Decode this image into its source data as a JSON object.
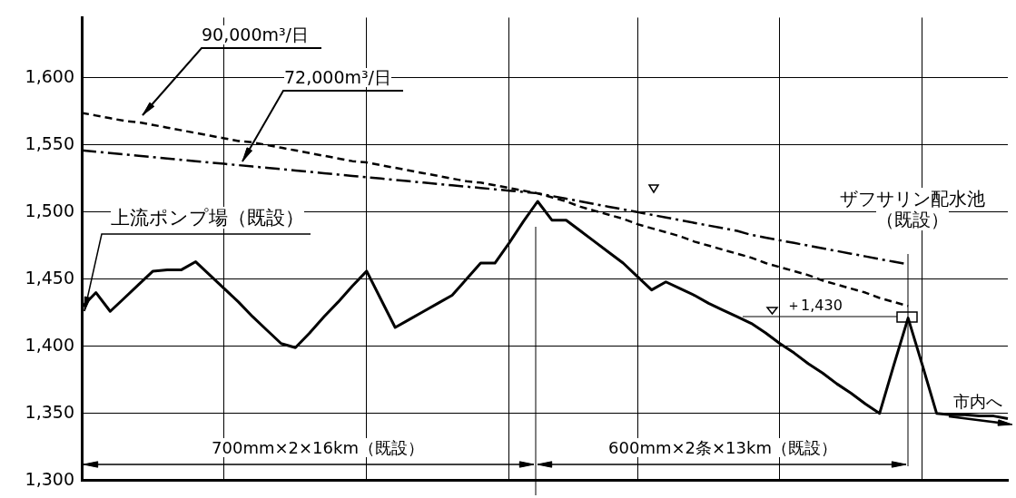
{
  "chart_data": {
    "type": "line",
    "categories": [
      null,
      null,
      null,
      null,
      null,
      null,
      null,
      null,
      null,
      null,
      null,
      null,
      null,
      null,
      null,
      null,
      null,
      null,
      null,
      null,
      null,
      null,
      null,
      null,
      null,
      null,
      null,
      null,
      null,
      null,
      null,
      null,
      null,
      null,
      null,
      null,
      null,
      null,
      null,
      null,
      null,
      null,
      null,
      null,
      null,
      null,
      null,
      null,
      null,
      null,
      null,
      null,
      null,
      null,
      null,
      null,
      null,
      null,
      null,
      null,
      null,
      null,
      null,
      null,
      null,
      null
    ],
    "series": [
      {
        "color": "#000000",
        "line_style": "solid",
        "values": [
          1429,
          1440,
          1426,
          1436,
          1446,
          1456,
          1457,
          1457,
          1463,
          1453,
          1443,
          1433,
          1422,
          1412,
          1402,
          1399,
          1410,
          1422,
          1433,
          1445,
          1456,
          1435,
          1414,
          1420,
          1426,
          1432,
          1438,
          1450,
          1462,
          1462,
          1477,
          1493,
          1508,
          1494,
          1494,
          1486,
          1478,
          1470,
          1462,
          1452,
          1442,
          1448,
          1443,
          1438,
          1432,
          1427,
          1422,
          1417,
          1410,
          1402,
          1395,
          1387,
          1380,
          1372,
          1365,
          1357,
          1350,
          1386,
          1421,
          1386,
          1350,
          1349,
          1349,
          1348,
          1348,
          1346
        ]
      },
      {
        "name": "90,000m³/日",
        "color": "#000000",
        "line_style": "dashed",
        "values": [
          1574,
          1572,
          1570,
          1568,
          1567,
          1565,
          1563,
          1561,
          1559,
          1557,
          1555,
          1553,
          1552,
          1550,
          1548,
          1546,
          1544,
          1542,
          1540,
          1538,
          1537,
          1535,
          1533,
          1531,
          1529,
          1527,
          1525,
          1523,
          1522,
          1520,
          1518,
          1516,
          1514,
          1511,
          1508,
          1504,
          1501,
          1498,
          1495,
          1491,
          1488,
          1485,
          1482,
          1478,
          1475,
          1472,
          1469,
          1466,
          1462,
          1459,
          1456,
          1453,
          1449,
          1446,
          1443,
          1440,
          1436,
          1433,
          1430,
          null,
          null,
          null,
          null,
          null,
          null,
          null
        ]
      },
      {
        "name": "72,000m³/日",
        "color": "#000000",
        "line_style": "dashdot",
        "values": [
          1546,
          1545,
          1544,
          1543,
          1542,
          1541,
          1540,
          1539,
          1538,
          1537,
          1536,
          1535,
          1534,
          1533,
          1532,
          1531,
          1530,
          1529,
          1528,
          1527,
          1526,
          1525,
          1524,
          1523,
          1522,
          1521,
          1520,
          1519,
          1518,
          1517,
          1516,
          1515,
          1514,
          1512,
          1510,
          1508,
          1506,
          1504,
          1502,
          1500,
          1498,
          1496,
          1494,
          1492,
          1490,
          1488,
          1486,
          1483,
          1481,
          1479,
          1477,
          1475,
          1473,
          1471,
          1469,
          1467,
          1465,
          1463,
          1461,
          null,
          null,
          null,
          null,
          null,
          null,
          null
        ]
      }
    ],
    "ylim": [
      1300,
      1645
    ],
    "yticks": [
      {
        "value": 1300,
        "label": "1,300"
      },
      {
        "value": 1350,
        "label": "1,350"
      },
      {
        "value": 1400,
        "label": "1,400"
      },
      {
        "value": 1450,
        "label": "1,450"
      },
      {
        "value": 1500,
        "label": "1,500"
      },
      {
        "value": 1550,
        "label": "1,550"
      },
      {
        "value": 1600,
        "label": "1,600"
      }
    ],
    "grid": true,
    "legend": false,
    "marker": "none",
    "tick_labels": "y",
    "annotations": [
      "上流ポンプ場（既設）",
      "ザフサリン配水池（既設）",
      "＋1,430",
      "700mm×2×16km（既設）",
      "600mm×2条×13km（既設）",
      "市内へ"
    ]
  }
}
